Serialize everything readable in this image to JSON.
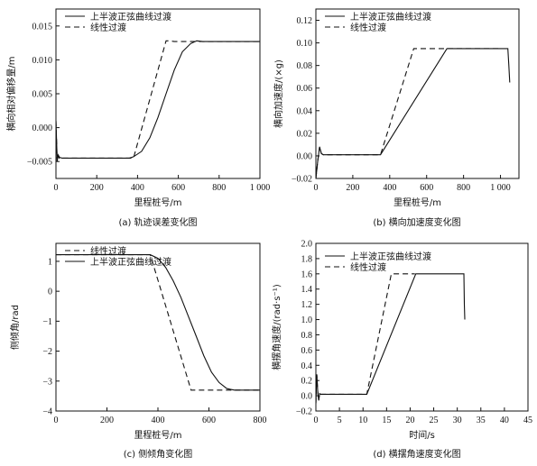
{
  "chart_data": [
    {
      "type": "line",
      "caption": "(a) 轨迹误差变化图",
      "xlabel": "里程桩号/m",
      "ylabel": "横向相对偏移量/m",
      "xlim": [
        0,
        1000
      ],
      "ylim": [
        -0.0075,
        0.0175
      ],
      "xticks": [
        0,
        200,
        400,
        600,
        800,
        1000
      ],
      "xtick_labels": [
        "0",
        "200",
        "400",
        "600",
        "800",
        "1 000"
      ],
      "yticks": [
        -0.005,
        0.0,
        0.005,
        0.01,
        0.015
      ],
      "ytick_labels": [
        "−0.005",
        "0.000",
        "0.005",
        "0.010",
        "0.015"
      ],
      "legend_position": "top-left",
      "series": [
        {
          "name": "上半波正弦曲线过渡",
          "dash": "solid",
          "x": [
            0,
            3,
            6,
            10,
            15,
            20,
            30,
            60,
            200,
            360,
            380,
            420,
            460,
            500,
            540,
            580,
            620,
            660,
            690,
            720,
            800,
            1000
          ],
          "y": [
            0.001,
            -0.002,
            -0.005,
            -0.004,
            -0.0045,
            -0.0044,
            -0.0045,
            -0.0045,
            -0.0045,
            -0.0045,
            -0.0043,
            -0.0035,
            -0.0015,
            0.0015,
            0.005,
            0.0085,
            0.0112,
            0.0124,
            0.0128,
            0.0127,
            0.0127,
            0.0127
          ]
        },
        {
          "name": "线性过渡",
          "dash": "dashed",
          "x": [
            0,
            3,
            6,
            10,
            20,
            360,
            380,
            540,
            560,
            580,
            1000
          ],
          "y": [
            0.001,
            -0.002,
            -0.005,
            -0.004,
            -0.0045,
            -0.0045,
            -0.0045,
            0.0128,
            0.0128,
            0.0127,
            0.0127
          ]
        }
      ]
    },
    {
      "type": "line",
      "caption": "(b) 横向加速度变化图",
      "xlabel": "里程桩号/m",
      "ylabel": "横向加速度/(×g)",
      "xlim": [
        0,
        1100
      ],
      "ylim": [
        -0.02,
        0.13
      ],
      "xticks": [
        0,
        200,
        400,
        600,
        800,
        1000
      ],
      "xtick_labels": [
        "0",
        "200",
        "400",
        "600",
        "800",
        "1 000"
      ],
      "yticks": [
        -0.02,
        0.0,
        0.02,
        0.04,
        0.06,
        0.08,
        0.1,
        0.12
      ],
      "ytick_labels": [
        "−0.02",
        "0.00",
        "0.02",
        "0.04",
        "0.06",
        "0.08",
        "0.10",
        "0.12"
      ],
      "legend_position": "top-left",
      "series": [
        {
          "name": "上半波正弦曲线过渡",
          "dash": "solid",
          "x": [
            0,
            10,
            20,
            25,
            30,
            40,
            60,
            100,
            350,
            710,
            1000,
            1040,
            1045,
            1050
          ],
          "y": [
            -0.02,
            -0.005,
            0.008,
            0.005,
            0.002,
            0.001,
            0.001,
            0.001,
            0.001,
            0.095,
            0.095,
            0.095,
            0.08,
            0.065
          ]
        },
        {
          "name": "线性过渡",
          "dash": "dashed",
          "x": [
            0,
            10,
            20,
            25,
            30,
            40,
            60,
            100,
            350,
            530,
            550,
            1000
          ],
          "y": [
            -0.02,
            -0.005,
            0.008,
            0.005,
            0.002,
            0.001,
            0.001,
            0.001,
            0.001,
            0.095,
            0.095,
            0.095
          ]
        }
      ]
    },
    {
      "type": "line",
      "caption": "(c) 侧倾角变化图",
      "xlabel": "里程桩号/m",
      "ylabel": "侧倾角/rad",
      "xlim": [
        0,
        800
      ],
      "ylim": [
        -4,
        1.6
      ],
      "xticks": [
        0,
        200,
        400,
        600,
        800
      ],
      "xtick_labels": [
        "0",
        "200",
        "400",
        "600",
        "800"
      ],
      "yticks": [
        -4,
        -3,
        -2,
        -1,
        0,
        1
      ],
      "ytick_labels": [
        "−4",
        "−3",
        "−2",
        "−1",
        "0",
        "1"
      ],
      "legend_position": "top-left",
      "series": [
        {
          "name": "线性过渡",
          "dash": "dashed",
          "x": [
            0,
            370,
            530,
            800
          ],
          "y": [
            1.22,
            1.22,
            -3.3,
            -3.3
          ]
        },
        {
          "name": "上半波正弦曲线过渡",
          "dash": "solid",
          "x": [
            0,
            370,
            400,
            430,
            460,
            490,
            520,
            550,
            580,
            610,
            640,
            670,
            700,
            800
          ],
          "y": [
            1.22,
            1.22,
            1.1,
            0.8,
            0.35,
            -0.2,
            -0.85,
            -1.5,
            -2.15,
            -2.7,
            -3.05,
            -3.25,
            -3.3,
            -3.3
          ]
        }
      ]
    },
    {
      "type": "line",
      "caption": "(d) 横摆角速度变化图",
      "xlabel": "时间/s",
      "ylabel": "横摆角速度/(rad·s⁻¹)",
      "xlim": [
        0,
        45
      ],
      "ylim": [
        -0.2,
        2.0
      ],
      "xticks": [
        0,
        5,
        10,
        15,
        20,
        25,
        30,
        35,
        40,
        45
      ],
      "xtick_labels": [
        "0",
        "5",
        "10",
        "15",
        "20",
        "25",
        "30",
        "35",
        "40",
        "45"
      ],
      "yticks": [
        -0.2,
        0.0,
        0.2,
        0.4,
        0.6,
        0.8,
        1.0,
        1.2,
        1.4,
        1.6,
        1.8,
        2.0
      ],
      "ytick_labels": [
        "−0.2",
        "0.0",
        "0.2",
        "0.4",
        "0.6",
        "0.8",
        "1.0",
        "1.2",
        "1.4",
        "1.6",
        "1.8",
        "2.0"
      ],
      "legend_position": "top-left",
      "series": [
        {
          "name": "上半波正弦曲线过渡",
          "dash": "solid",
          "x": [
            0,
            0.2,
            0.4,
            0.6,
            0.8,
            1.0,
            1.5,
            2.5,
            10.8,
            21.2,
            31.4,
            31.5,
            31.6
          ],
          "y": [
            -0.1,
            0.28,
            0.05,
            -0.06,
            0.03,
            0.02,
            0.02,
            0.02,
            0.02,
            1.6,
            1.6,
            1.2,
            1.0
          ]
        },
        {
          "name": "线性过渡",
          "dash": "dashed",
          "x": [
            0,
            0.2,
            0.4,
            0.6,
            0.8,
            1.0,
            1.5,
            2.5,
            10.8,
            16.0,
            21.0
          ],
          "y": [
            -0.1,
            0.28,
            0.05,
            -0.06,
            0.03,
            0.02,
            0.02,
            0.02,
            0.02,
            1.6,
            1.6
          ]
        }
      ]
    }
  ]
}
